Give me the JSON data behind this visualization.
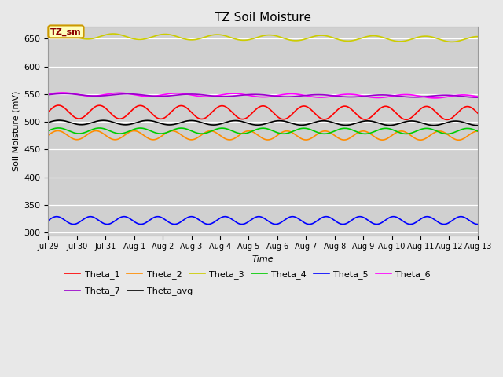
{
  "title": "TZ Soil Moisture",
  "ylabel": "Soil Moisture (mV)",
  "xlabel": "Time",
  "label_box": "TZ_sm",
  "background_color": "#e8e8e8",
  "plot_bg_color": "#d0d0d0",
  "ylim": [
    295,
    672
  ],
  "yticks": [
    300,
    350,
    400,
    450,
    500,
    550,
    600,
    650
  ],
  "date_labels": [
    "Jul 29",
    "Jul 30",
    "Jul 31",
    "Aug 1",
    "Aug 2",
    "Aug 3",
    "Aug 4",
    "Aug 5",
    "Aug 6",
    "Aug 7",
    "Aug 8",
    "Aug 9",
    "Aug 10",
    "Aug 11",
    "Aug 12",
    "Aug 13"
  ],
  "series": {
    "Theta_1": {
      "color": "#ff0000",
      "base": 518,
      "amplitude": 12,
      "freq": 0.7,
      "trend": -0.15
    },
    "Theta_2": {
      "color": "#ff8c00",
      "base": 476,
      "amplitude": 8,
      "freq": 0.75,
      "trend": -0.05
    },
    "Theta_3": {
      "color": "#cccc00",
      "base": 655,
      "amplitude": 5,
      "freq": 0.55,
      "trend": -0.4
    },
    "Theta_4": {
      "color": "#00cc00",
      "base": 484,
      "amplitude": 5,
      "freq": 0.7,
      "trend": -0.05
    },
    "Theta_5": {
      "color": "#0000ff",
      "base": 322,
      "amplitude": 7,
      "freq": 0.85,
      "trend": 0.0
    },
    "Theta_6": {
      "color": "#ff00ff",
      "base": 550,
      "amplitude": 3,
      "freq": 0.5,
      "trend": -0.3
    },
    "Theta_7": {
      "color": "#9900cc",
      "base": 549,
      "amplitude": 2,
      "freq": 0.45,
      "trend": -0.2
    },
    "Theta_avg": {
      "color": "#000000",
      "base": 499,
      "amplitude": 4,
      "freq": 0.65,
      "trend": -0.1
    }
  },
  "legend_order": [
    "Theta_1",
    "Theta_2",
    "Theta_3",
    "Theta_4",
    "Theta_5",
    "Theta_6",
    "Theta_7",
    "Theta_avg"
  ]
}
